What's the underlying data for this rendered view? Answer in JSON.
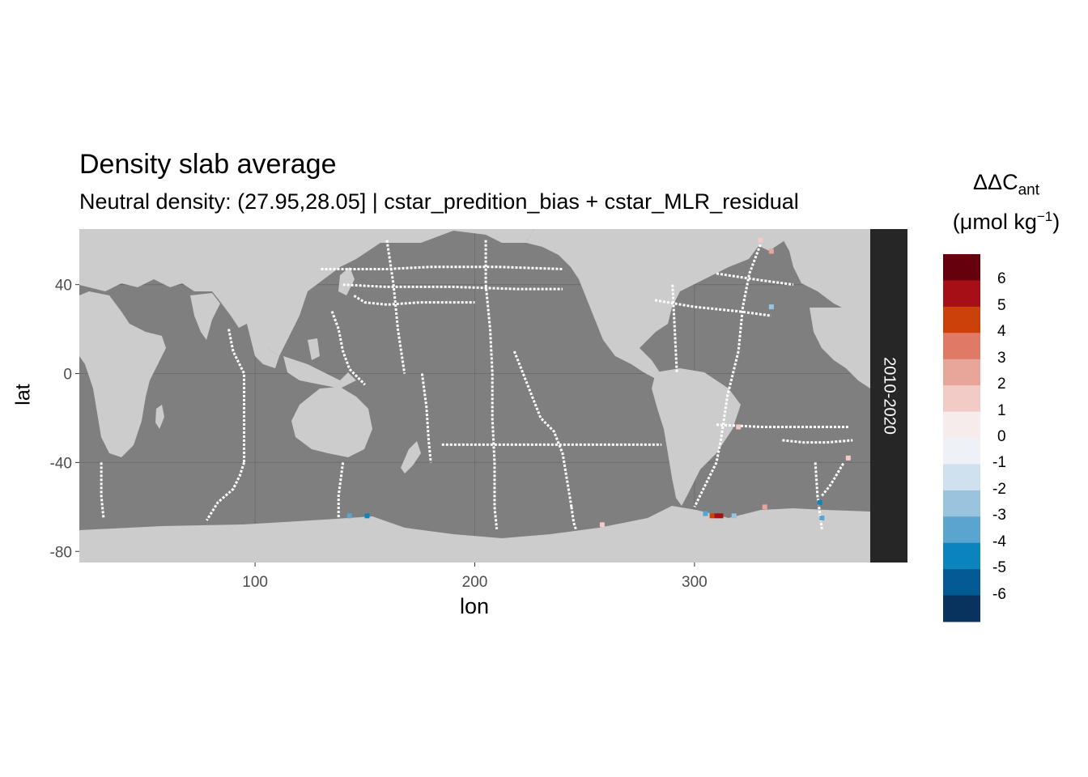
{
  "title": "Density slab average",
  "subtitle": "Neutral density: (27.95,28.05] | cstar_predition_bias + cstar_MLR_residual",
  "xlabel": "lon",
  "ylabel": "lat",
  "facet_label": "2010-2020",
  "legend": {
    "title_main": "ΔΔC",
    "title_sub": "ant",
    "unit_open": "(μmol kg",
    "unit_sup": "−1",
    "unit_close": ")",
    "labels": [
      "6",
      "5",
      "4",
      "3",
      "2",
      "1",
      "0",
      "-1",
      "-2",
      "-3",
      "-4",
      "-5",
      "-6"
    ],
    "colors": [
      "#67000d",
      "#a50f15",
      "#cb4109",
      "#e07a66",
      "#e8a59a",
      "#f2cbc6",
      "#f6ecec",
      "#eef2f6",
      "#cfe0ef",
      "#9ac4de",
      "#5aa5cf",
      "#0b83bd",
      "#045a95",
      "#08335f"
    ]
  },
  "colors": {
    "ocean": "#7f7f7f",
    "land": "#cccccc",
    "grid": "#6e6e6e",
    "track": "#ffffff",
    "facet_strip": "#262626",
    "facet_text": "#ffffff"
  },
  "chart_data": {
    "type": "heatmap",
    "xlim": [
      20,
      380
    ],
    "ylim": [
      -85,
      65
    ],
    "x_ticks": [
      100,
      200,
      300
    ],
    "y_ticks": [
      40,
      0,
      -40,
      -80
    ],
    "tracks": [
      {
        "lon": [
          160,
          163,
          165,
          168
        ],
        "lat": [
          60,
          40,
          20,
          0
        ]
      },
      {
        "lon": [
          205,
          205,
          207,
          208,
          208
        ],
        "lat": [
          60,
          40,
          20,
          0,
          -20
        ]
      },
      {
        "lon": [
          208,
          209,
          209,
          210
        ],
        "lat": [
          -20,
          -40,
          -60,
          -70
        ]
      },
      {
        "lon": [
          145,
          150,
          160,
          175,
          190,
          200
        ],
        "lat": [
          35,
          32,
          31,
          32,
          32,
          32
        ]
      },
      {
        "lon": [
          130,
          160,
          180,
          210,
          240
        ],
        "lat": [
          47,
          47,
          48,
          48,
          47
        ]
      },
      {
        "lon": [
          140,
          160,
          190,
          220,
          240
        ],
        "lat": [
          40,
          39,
          39,
          38,
          38
        ]
      },
      {
        "lon": [
          185,
          210,
          240,
          270,
          285
        ],
        "lat": [
          -32,
          -32,
          -32,
          -32,
          -32
        ]
      },
      {
        "lon": [
          218,
          222,
          226,
          230,
          236,
          240,
          244
        ],
        "lat": [
          10,
          0,
          -10,
          -20,
          -26,
          -36,
          -60
        ]
      },
      {
        "lon": [
          244,
          245,
          246
        ],
        "lat": [
          -60,
          -67,
          -70
        ]
      },
      {
        "lon": [
          176,
          178,
          179,
          180
        ],
        "lat": [
          0,
          -15,
          -30,
          -40
        ]
      },
      {
        "lon": [
          135,
          138,
          140,
          143,
          150
        ],
        "lat": [
          28,
          20,
          10,
          2,
          -5
        ]
      },
      {
        "lon": [
          88,
          90,
          95,
          95,
          95
        ],
        "lat": [
          20,
          10,
          0,
          -20,
          -40
        ]
      },
      {
        "lon": [
          95,
          93,
          90,
          83,
          78
        ],
        "lat": [
          -40,
          -46,
          -52,
          -58,
          -66
        ]
      },
      {
        "lon": [
          30,
          30,
          31
        ],
        "lat": [
          -40,
          -55,
          -65
        ]
      },
      {
        "lon": [
          140,
          138,
          138
        ],
        "lat": [
          -40,
          -55,
          -65
        ]
      },
      {
        "lon": [
          282,
          300,
          320,
          335
        ],
        "lat": [
          33,
          30,
          28,
          26
        ]
      },
      {
        "lon": [
          290,
          291,
          292
        ],
        "lat": [
          40,
          20,
          0
        ]
      },
      {
        "lon": [
          310,
          330,
          345
        ],
        "lat": [
          45,
          42,
          40
        ]
      },
      {
        "lon": [
          330,
          325,
          322,
          320
        ],
        "lat": [
          58,
          45,
          30,
          10
        ]
      },
      {
        "lon": [
          320,
          315,
          312,
          310
        ],
        "lat": [
          10,
          -10,
          -30,
          -40
        ]
      },
      {
        "lon": [
          310,
          305,
          300
        ],
        "lat": [
          -40,
          -50,
          -60
        ]
      },
      {
        "lon": [
          310,
          330,
          350,
          370
        ],
        "lat": [
          -23,
          -24,
          -24,
          -24
        ]
      },
      {
        "lon": [
          340,
          350,
          360,
          372
        ],
        "lat": [
          -30,
          -31,
          -31,
          -30
        ]
      },
      {
        "lon": [
          355,
          356,
          358
        ],
        "lat": [
          -40,
          -55,
          -70
        ]
      },
      {
        "lon": [
          358,
          362,
          365,
          368
        ],
        "lat": [
          -55,
          -50,
          -45,
          -40
        ]
      }
    ],
    "highlights": [
      {
        "lon": 310,
        "lat": -64,
        "value": 6
      },
      {
        "lon": 312,
        "lat": -64,
        "value": 6
      },
      {
        "lon": 308,
        "lat": -64,
        "value": 5
      },
      {
        "lon": 305,
        "lat": -63,
        "value": -3
      },
      {
        "lon": 318,
        "lat": -64,
        "value": -2
      },
      {
        "lon": 151,
        "lat": -64,
        "value": -4
      },
      {
        "lon": 143,
        "lat": -64,
        "value": -3
      },
      {
        "lon": 357,
        "lat": -58,
        "value": -4
      },
      {
        "lon": 358,
        "lat": -65,
        "value": -3
      },
      {
        "lon": 258,
        "lat": -68,
        "value": 2
      },
      {
        "lon": 332,
        "lat": -60,
        "value": 3
      },
      {
        "lon": 335,
        "lat": 30,
        "value": -2
      },
      {
        "lon": 330,
        "lat": 60,
        "value": 2
      },
      {
        "lon": 335,
        "lat": 55,
        "value": 3
      },
      {
        "lon": 370,
        "lat": -38,
        "value": 2
      },
      {
        "lon": 320,
        "lat": -24,
        "value": 2
      }
    ]
  }
}
